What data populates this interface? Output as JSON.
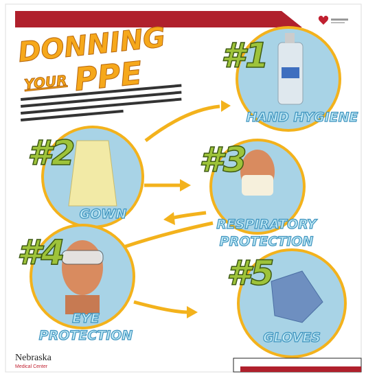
{
  "header": {
    "title": [
      "DONNING",
      "YOUR",
      "PPE"
    ]
  },
  "steps": [
    {
      "number": "#1",
      "label": [
        "HAND HYGIENE"
      ]
    },
    {
      "number": "#2",
      "label": [
        "GOWN"
      ]
    },
    {
      "number": "#3",
      "label": [
        "RESPIRATORY",
        "PROTECTION"
      ]
    },
    {
      "number": "#4",
      "label": [
        "EYE",
        "PROTECTION"
      ]
    },
    {
      "number": "#5",
      "label": [
        "GLOVES"
      ]
    }
  ],
  "footer": {
    "logo": "Nebraska",
    "logo_sub": "Medical Center"
  }
}
